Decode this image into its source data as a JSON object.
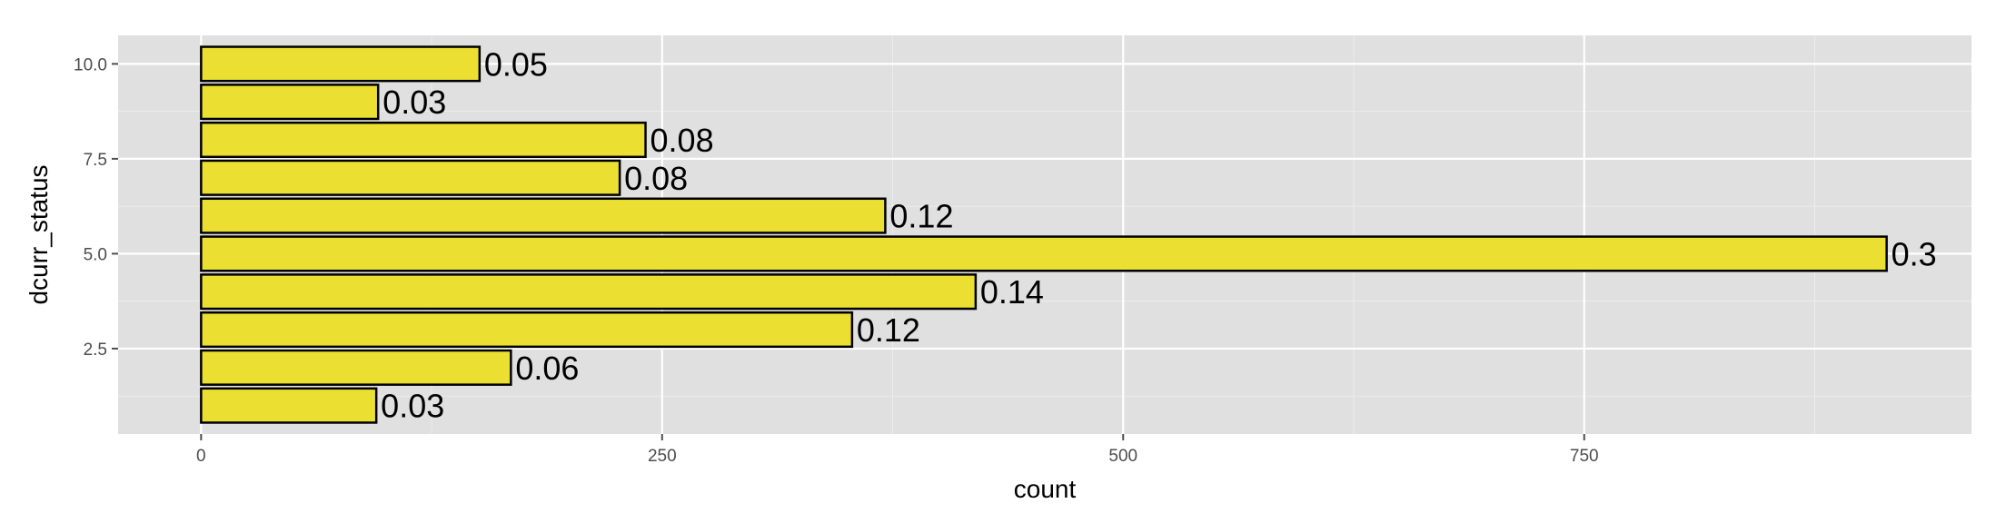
{
  "chart_data": {
    "type": "bar",
    "orientation": "horizontal",
    "xlabel": "count",
    "ylabel": "dcurr_status",
    "xlim": [
      -45,
      960
    ],
    "ylim": [
      0.25,
      10.75
    ],
    "x_ticks": [
      0,
      250,
      500,
      750
    ],
    "x_tick_labels": [
      "0",
      "250",
      "500",
      "750"
    ],
    "y_ticks": [
      2.5,
      5.0,
      7.5,
      10.0
    ],
    "y_tick_labels": [
      "2.5",
      "5.0",
      "7.5",
      "10.0"
    ],
    "categories": [
      1,
      2,
      3,
      4,
      5,
      6,
      7,
      8,
      9,
      10
    ],
    "values": [
      95,
      168,
      353,
      420,
      914,
      371,
      227,
      241,
      96,
      151
    ],
    "labels": [
      "0.03",
      "0.06",
      "0.12",
      "0.14",
      "0.3",
      "0.12",
      "0.08",
      "0.08",
      "0.03",
      "0.05"
    ],
    "grid": true,
    "legend": "none",
    "colors": {
      "panel": "#e0e0e0",
      "grid_major": "#ffffff",
      "grid_minor": "#ececec",
      "bar_fill": "#ebe032",
      "bar_outline": "#000000"
    }
  }
}
